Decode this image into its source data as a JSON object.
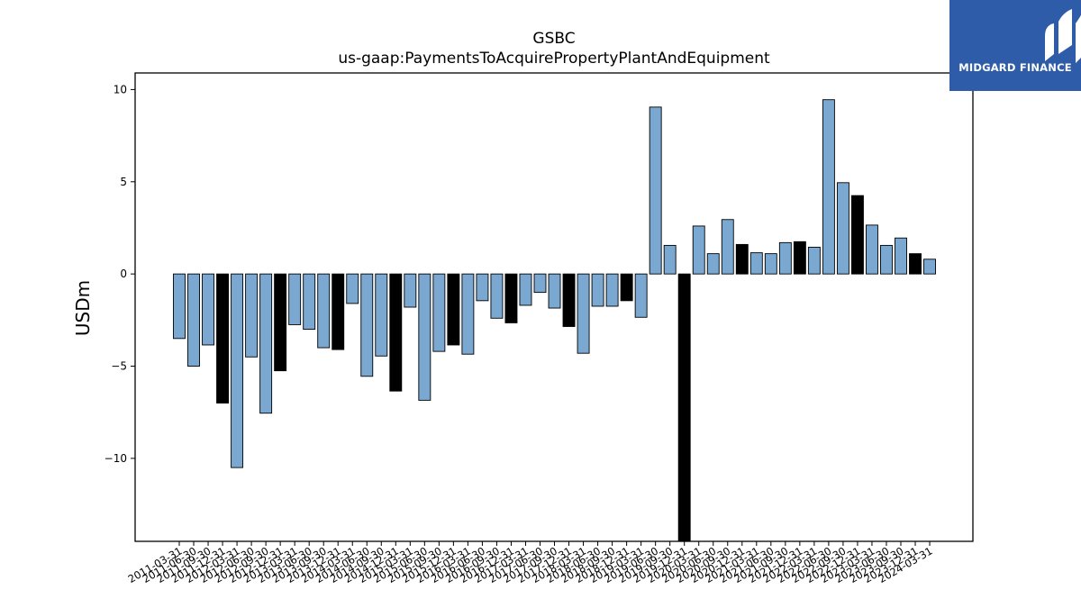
{
  "chart_data": {
    "type": "bar",
    "title": "GSBC",
    "subtitle": "us-gaap:PaymentsToAcquirePropertyPlantAndEquipment",
    "ylabel": "USDm",
    "ylim": [
      -14.5,
      10.9
    ],
    "yticks": [
      10,
      5,
      0,
      -5,
      -10
    ],
    "ytick_labels": [
      "10",
      "5",
      "0",
      "−5",
      "−10"
    ],
    "colors": {
      "quarter": "#7aa8d1",
      "annual": "#000000",
      "edge": "#000000"
    },
    "categories": [
      "2011-03-31",
      "2011-06-30",
      "2011-09-30",
      "2011-12-31",
      "2012-03-31",
      "2012-06-30",
      "2012-09-30",
      "2012-12-31",
      "2013-03-31",
      "2013-06-30",
      "2013-09-30",
      "2013-12-31",
      "2014-03-31",
      "2014-06-30",
      "2014-09-30",
      "2014-12-31",
      "2015-03-31",
      "2015-06-30",
      "2015-09-30",
      "2015-12-31",
      "2016-03-31",
      "2016-06-30",
      "2016-09-30",
      "2016-12-31",
      "2017-03-31",
      "2017-06-30",
      "2017-09-30",
      "2017-12-31",
      "2018-03-31",
      "2018-06-30",
      "2018-09-30",
      "2018-12-31",
      "2019-03-31",
      "2019-06-30",
      "2019-09-30",
      "2019-12-31",
      "2020-03-31",
      "2020-06-30",
      "2020-09-30",
      "2020-12-31",
      "2021-03-31",
      "2021-06-30",
      "2021-09-30",
      "2021-12-31",
      "2022-03-31",
      "2022-06-30",
      "2022-09-30",
      "2022-12-31",
      "2023-03-31",
      "2023-06-30",
      "2023-09-30",
      "2023-12-31",
      "2024-03-31"
    ],
    "values": [
      -3.5,
      -5.0,
      -3.85,
      -7.0,
      -10.5,
      -4.5,
      -7.55,
      -5.25,
      -2.75,
      -3.0,
      -4.0,
      -4.1,
      -1.6,
      -5.55,
      -4.45,
      -6.35,
      -1.8,
      -6.85,
      -4.2,
      -3.85,
      -4.35,
      -1.45,
      -2.4,
      -2.65,
      -1.7,
      -1.0,
      -1.85,
      -2.85,
      -4.3,
      -1.75,
      -1.75,
      -1.45,
      -2.35,
      9.05,
      1.55,
      -14.5,
      2.6,
      1.1,
      2.95,
      1.6,
      1.15,
      1.1,
      1.7,
      1.75,
      1.45,
      9.45,
      4.95,
      4.25,
      2.65,
      1.55,
      1.95,
      1.1,
      0.8
    ],
    "annual": [
      false,
      false,
      false,
      true,
      false,
      false,
      false,
      true,
      false,
      false,
      false,
      true,
      false,
      false,
      false,
      true,
      false,
      false,
      false,
      true,
      false,
      false,
      false,
      true,
      false,
      false,
      false,
      true,
      false,
      false,
      false,
      true,
      false,
      false,
      false,
      true,
      false,
      false,
      false,
      true,
      false,
      false,
      false,
      true,
      false,
      false,
      false,
      true,
      false,
      false,
      false,
      true,
      false
    ]
  },
  "logo": {
    "text": "MIDGARD FINANCE"
  }
}
